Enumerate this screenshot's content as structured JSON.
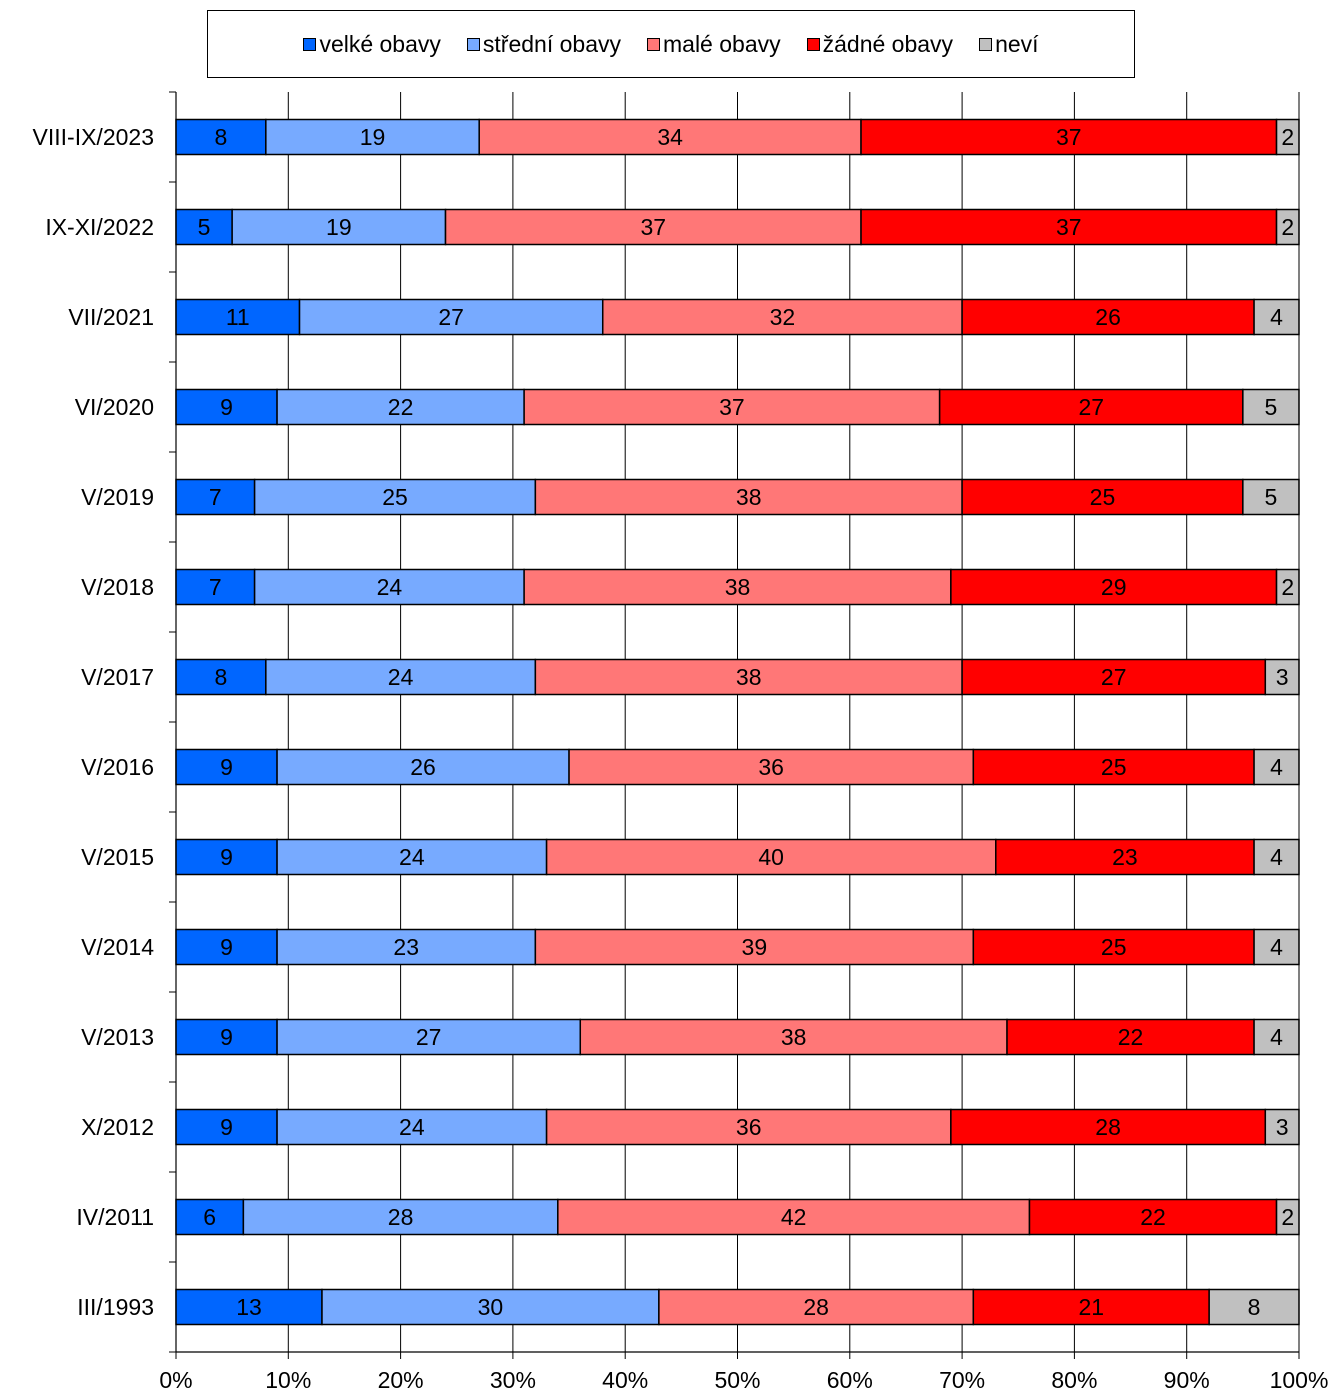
{
  "chart_data": {
    "type": "bar",
    "orientation": "horizontal",
    "stacked": "percent",
    "categories": [
      "VIII-IX/2023",
      "IX-XI/2022",
      "VII/2021",
      "VI/2020",
      "V/2019",
      "V/2018",
      "V/2017",
      "V/2016",
      "V/2015",
      "V/2014",
      "V/2013",
      "X/2012",
      "IV/2011",
      "III/1993"
    ],
    "series": [
      {
        "name": "velké obavy",
        "color": "#0066ff",
        "values": [
          8,
          5,
          11,
          9,
          7,
          7,
          8,
          9,
          9,
          9,
          9,
          9,
          6,
          13
        ]
      },
      {
        "name": "střední obavy",
        "color": "#77aaff",
        "values": [
          19,
          19,
          27,
          22,
          25,
          24,
          24,
          26,
          24,
          23,
          27,
          24,
          28,
          30
        ]
      },
      {
        "name": "malé obavy",
        "color": "#ff7777",
        "values": [
          34,
          37,
          32,
          37,
          38,
          38,
          38,
          36,
          40,
          39,
          38,
          36,
          42,
          28
        ]
      },
      {
        "name": "žádné obavy",
        "color": "#ff0000",
        "values": [
          37,
          37,
          26,
          27,
          25,
          29,
          27,
          25,
          23,
          25,
          22,
          28,
          22,
          21
        ]
      },
      {
        "name": "neví",
        "color": "#c0c0c0",
        "values": [
          2,
          2,
          4,
          5,
          5,
          2,
          3,
          4,
          4,
          4,
          4,
          3,
          2,
          8
        ]
      }
    ],
    "xlim": [
      0,
      100
    ],
    "x_ticks": [
      "0%",
      "10%",
      "20%",
      "30%",
      "40%",
      "50%",
      "60%",
      "70%",
      "80%",
      "90%",
      "100%"
    ],
    "grid": true,
    "legend_position": "top",
    "title": "",
    "xlabel": "",
    "ylabel": ""
  }
}
